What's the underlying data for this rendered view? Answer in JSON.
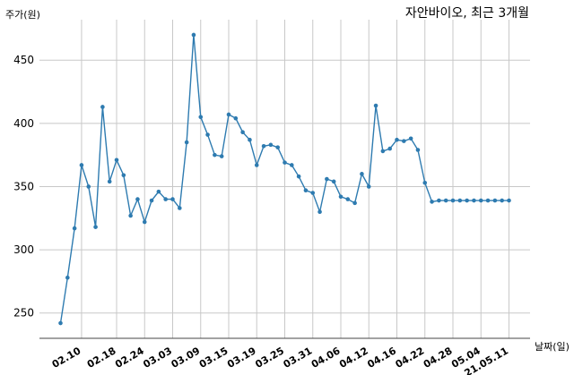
{
  "chart_data": {
    "type": "line",
    "title": "자안바이오, 최근 3개월",
    "xlabel": "날짜(일)",
    "ylabel": "주가(원)",
    "ylim": [
      230,
      482
    ],
    "yticks": [
      250,
      300,
      350,
      400,
      450
    ],
    "grid": true,
    "series_color": "#2e7bb0",
    "x_tick_labels": [
      "02.10",
      "02.18",
      "02.24",
      "03.03",
      "03.09",
      "03.15",
      "03.19",
      "03.25",
      "03.31",
      "04.06",
      "04.12",
      "04.16",
      "04.22",
      "04.28",
      "05.04",
      "21.05.11"
    ],
    "x_tick_indices": [
      3,
      8,
      12,
      16,
      20,
      24,
      28,
      32,
      36,
      40,
      44,
      48,
      52,
      56,
      60,
      64
    ],
    "values": [
      242,
      278,
      317,
      367,
      350,
      318,
      413,
      354,
      371,
      359,
      327,
      340,
      322,
      339,
      346,
      340,
      340,
      333,
      385,
      470,
      405,
      391,
      375,
      374,
      407,
      404,
      393,
      387,
      367,
      382,
      383,
      381,
      369,
      367,
      358,
      347,
      345,
      330,
      356,
      354,
      342,
      340,
      337,
      360,
      350,
      414,
      378,
      380,
      387,
      386,
      388,
      379,
      353,
      338,
      339,
      339,
      339,
      339,
      339,
      339,
      339,
      339,
      339,
      339,
      339
    ]
  }
}
